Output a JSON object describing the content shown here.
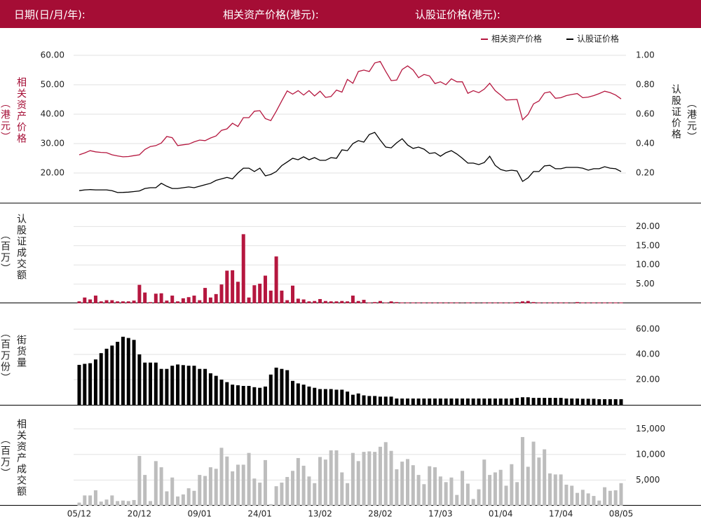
{
  "header": {
    "date_label": "日期(日/月/年):",
    "underlying_label": "相关资产价格(港元):",
    "warrant_label": "认股证价格(港元):"
  },
  "chart_data": [
    {
      "type": "line",
      "ylabel": "相关资产价格",
      "ylabel_unit": "（港元）",
      "y2label": "认股证价格",
      "y2label_unit": "（港元）",
      "ylim": [
        10,
        65
      ],
      "yticks": [
        {
          "value": 20,
          "label": "20.00"
        },
        {
          "value": 30,
          "label": "30.00"
        },
        {
          "value": 40,
          "label": "40.00"
        },
        {
          "value": 50,
          "label": "50.00"
        },
        {
          "value": 60,
          "label": "60.00"
        }
      ],
      "y2lim": [
        0,
        1.1
      ],
      "y2ticks": [
        {
          "value": 0.2,
          "label": "0.20"
        },
        {
          "value": 0.4,
          "label": "0.40"
        },
        {
          "value": 0.6,
          "label": "0.60"
        },
        {
          "value": 0.8,
          "label": "0.80"
        },
        {
          "value": 1,
          "label": "1.00"
        }
      ],
      "grid": true,
      "legend": "top-right",
      "series": [
        {
          "name": "相关资产价格",
          "color": "#b5173f",
          "values": [
            26.2,
            26.8,
            27.6,
            27.2,
            27.0,
            26.9,
            26.2,
            25.8,
            25.5,
            25.6,
            25.9,
            26.2,
            28.0,
            29.0,
            29.3,
            30.2,
            32.4,
            32.0,
            29.3,
            29.6,
            29.8,
            30.6,
            31.2,
            31.0,
            31.9,
            32.6,
            34.5,
            35.0,
            36.9,
            35.8,
            38.8,
            38.8,
            41.0,
            41.2,
            38.5,
            37.8,
            41.0,
            44.5,
            47.9,
            46.8,
            48.0,
            46.5,
            48.0,
            46.2,
            47.8,
            45.7,
            46.0,
            48.2,
            47.5,
            51.8,
            50.5,
            54.5,
            55.0,
            54.5,
            57.4,
            57.9,
            54.5,
            51.4,
            51.6,
            55.2,
            56.4,
            55.0,
            52.4,
            53.5,
            53.0,
            50.4,
            51.0,
            50.0,
            52.0,
            51.0,
            51.0,
            47.1,
            48.0,
            47.3,
            48.5,
            50.5,
            48.0,
            46.5,
            44.8,
            44.9,
            45.0,
            38.1,
            39.9,
            43.5,
            44.5,
            47.2,
            47.6,
            45.4,
            45.6,
            46.3,
            46.7,
            47.0,
            45.6,
            45.8,
            46.3,
            47.0,
            47.8,
            47.3,
            46.5,
            45.2
          ]
        },
        {
          "name": "认股证价格",
          "color": "#000000",
          "axis": "y2",
          "values": [
            0.08,
            0.085,
            0.087,
            0.085,
            0.085,
            0.085,
            0.08,
            0.067,
            0.068,
            0.07,
            0.074,
            0.078,
            0.095,
            0.1,
            0.1,
            0.13,
            0.11,
            0.095,
            0.095,
            0.1,
            0.105,
            0.1,
            0.11,
            0.12,
            0.13,
            0.15,
            0.16,
            0.17,
            0.16,
            0.2,
            0.233,
            0.233,
            0.21,
            0.233,
            0.181,
            0.19,
            0.21,
            0.25,
            0.275,
            0.3,
            0.29,
            0.31,
            0.29,
            0.305,
            0.286,
            0.286,
            0.305,
            0.3,
            0.357,
            0.352,
            0.4,
            0.42,
            0.41,
            0.462,
            0.476,
            0.424,
            0.376,
            0.371,
            0.405,
            0.433,
            0.39,
            0.367,
            0.376,
            0.362,
            0.333,
            0.338,
            0.314,
            0.338,
            0.352,
            0.329,
            0.3,
            0.267,
            0.267,
            0.257,
            0.271,
            0.314,
            0.252,
            0.224,
            0.214,
            0.219,
            0.214,
            0.143,
            0.167,
            0.21,
            0.21,
            0.248,
            0.252,
            0.229,
            0.229,
            0.238,
            0.238,
            0.238,
            0.233,
            0.219,
            0.229,
            0.229,
            0.243,
            0.233,
            0.229,
            0.21
          ]
        }
      ]
    },
    {
      "type": "bar",
      "ylabel": "认股证成交额",
      "ylabel_unit": "（百万）",
      "color": "#b5173f",
      "grid": true,
      "ylim": [
        0,
        25
      ],
      "yticks": [
        {
          "value": 5,
          "label": "5.00"
        },
        {
          "value": 10,
          "label": "10.00"
        },
        {
          "value": 15,
          "label": "15.00"
        },
        {
          "value": 20,
          "label": "20.00"
        }
      ],
      "values": [
        0.5,
        1.5,
        1,
        2,
        0.5,
        0.8,
        0.8,
        0.5,
        0.5,
        0.5,
        0.7,
        4.8,
        2.8,
        0.3,
        2.5,
        2.6,
        0.7,
        2,
        0.5,
        1.3,
        1.6,
        2,
        0.8,
        4,
        1.5,
        2.4,
        4.9,
        8.5,
        8.6,
        5.6,
        18,
        1.5,
        4.7,
        5.1,
        7.2,
        3.3,
        12.2,
        3.3,
        0.8,
        4.6,
        1.2,
        1,
        0.5,
        0.6,
        1.1,
        0.6,
        0.5,
        0.5,
        0.6,
        0.5,
        2,
        0.6,
        0.9,
        0.2,
        0.3,
        0.6,
        0.2,
        0.5,
        0.3,
        0.2,
        0.2,
        0.2,
        0.2,
        0.2,
        0.2,
        0.2,
        0.2,
        0.2,
        0.2,
        0.2,
        0.1,
        0.2,
        0.2,
        0.1,
        0.2,
        0.2,
        0.2,
        0.2,
        0.2,
        0.2,
        0.3,
        0.5,
        0.6,
        0.3,
        0.2,
        0.2,
        0.2,
        0.2,
        0.2,
        0.2,
        0.1,
        0.3,
        0.2,
        0.2,
        0.2,
        0.2,
        0.2,
        0.2,
        0.2,
        0.2
      ]
    },
    {
      "type": "bar",
      "ylabel": "街货量",
      "ylabel_unit": "（百万份）",
      "color": "#000000",
      "grid": true,
      "ylim": [
        0,
        75
      ],
      "yticks": [
        {
          "value": 20,
          "label": "20.00"
        },
        {
          "value": 40,
          "label": "40.00"
        },
        {
          "value": 60,
          "label": "60.00"
        }
      ],
      "values": [
        31.7,
        32.5,
        33,
        36,
        41,
        44.5,
        47,
        50,
        54,
        53,
        51.5,
        40,
        33.5,
        33.5,
        33.5,
        28.5,
        28.5,
        31,
        32,
        31.5,
        31,
        31,
        28.5,
        28.5,
        25,
        23,
        20,
        18,
        16,
        15.5,
        15,
        15,
        14,
        13.5,
        14.5,
        24,
        29.5,
        28.5,
        27.5,
        19,
        17,
        16,
        14.5,
        13.5,
        12.5,
        12.5,
        12.5,
        12,
        12,
        10.5,
        8,
        9,
        7.5,
        7,
        7,
        6.5,
        6.5,
        6.5,
        5,
        5,
        5,
        5,
        5,
        5,
        5,
        5,
        5,
        5,
        5,
        5,
        5,
        5,
        5,
        5,
        5,
        5,
        5,
        5,
        5,
        5,
        5.5,
        6,
        6,
        5.5,
        5.5,
        5.5,
        5.5,
        5.5,
        5.5,
        5,
        5,
        5,
        4.8,
        4.8,
        4.8,
        4.5,
        4.5,
        4.5,
        4.5,
        4.5
      ]
    },
    {
      "type": "bar",
      "ylabel": "相关资产成交额",
      "ylabel_unit": "（百万）",
      "color": "#bdbdbd",
      "grid": true,
      "ylim": [
        0,
        19000
      ],
      "yticks": [
        {
          "value": 5000,
          "label": "5,000"
        },
        {
          "value": 10000,
          "label": "10,000"
        },
        {
          "value": 15000,
          "label": "15,000"
        }
      ],
      "categories": [
        "05/12",
        null,
        null,
        null,
        null,
        null,
        null,
        null,
        null,
        null,
        null,
        "20/12",
        null,
        null,
        null,
        null,
        null,
        null,
        null,
        null,
        null,
        null,
        "09/01",
        null,
        null,
        null,
        null,
        null,
        null,
        null,
        null,
        null,
        null,
        "24/01",
        null,
        null,
        null,
        null,
        null,
        null,
        null,
        null,
        null,
        null,
        "13/02",
        null,
        null,
        null,
        null,
        null,
        null,
        null,
        null,
        null,
        null,
        "28/02",
        null,
        null,
        null,
        null,
        null,
        null,
        null,
        null,
        null,
        null,
        "17/03",
        null,
        null,
        null,
        null,
        null,
        null,
        null,
        null,
        null,
        null,
        "01/04",
        null,
        null,
        null,
        null,
        null,
        null,
        null,
        null,
        null,
        null,
        "17/04",
        null,
        null,
        null,
        null,
        null,
        null,
        null,
        null,
        null,
        null,
        "08/05"
      ],
      "values": [
        600,
        2000,
        2000,
        3000,
        800,
        1200,
        2000,
        900,
        1000,
        900,
        1100,
        9700,
        6000,
        900,
        8700,
        7500,
        2800,
        5500,
        1800,
        2200,
        3400,
        2900,
        6000,
        5800,
        7500,
        7200,
        11300,
        9600,
        6700,
        8000,
        8000,
        10300,
        5300,
        4500,
        8900,
        300,
        3800,
        4500,
        5600,
        6800,
        9300,
        7800,
        5700,
        4400,
        9500,
        9000,
        10800,
        10800,
        6500,
        4400,
        10300,
        8700,
        10500,
        10600,
        10500,
        11500,
        12400,
        10700,
        7100,
        8600,
        9100,
        7900,
        6000,
        4200,
        7700,
        7500,
        5700,
        4600,
        5500,
        2100,
        6800,
        4300,
        1300,
        3200,
        9000,
        6000,
        6500,
        7000,
        3900,
        8100,
        4600,
        13400,
        7600,
        12500,
        9400,
        11000,
        6300,
        6100,
        6100,
        4100,
        3900,
        2500,
        3100,
        2400,
        1900,
        1000,
        3600,
        2900,
        3000,
        4400
      ]
    }
  ]
}
